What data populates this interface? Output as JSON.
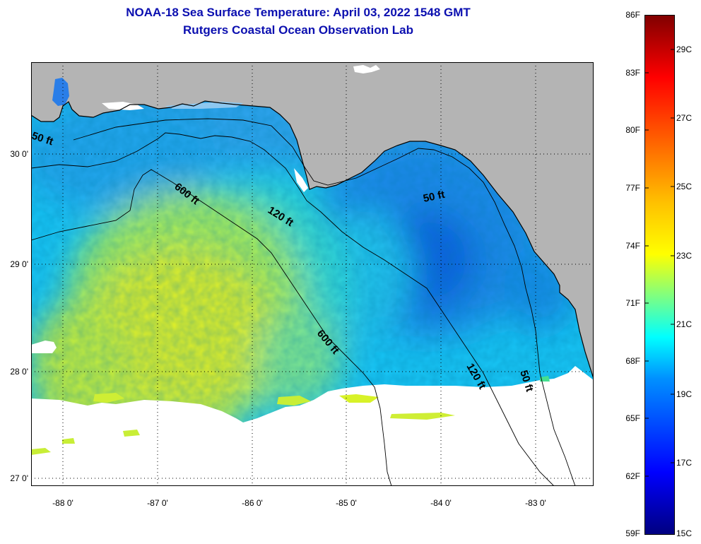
{
  "title": {
    "line1": "NOAA-18 Sea Surface Temperature:  April 03, 2022 1548 GMT",
    "line2": "Rutgers Coastal Ocean Observation Lab"
  },
  "map": {
    "lon_range": [
      -88.35,
      -82.55
    ],
    "lat_range": [
      26.95,
      30.85
    ],
    "lat_ticks": [
      {
        "value": 30,
        "label": "30 0'"
      },
      {
        "value": 29,
        "label": "29 0'"
      },
      {
        "value": 28,
        "label": "28 0'"
      },
      {
        "value": 27,
        "label": "27 0'"
      }
    ],
    "lon_ticks": [
      {
        "value": -88,
        "label": "-88 0'"
      },
      {
        "value": -87,
        "label": "-87 0'"
      },
      {
        "value": -86,
        "label": "-86 0'"
      },
      {
        "value": -85,
        "label": "-85 0'"
      },
      {
        "value": -84,
        "label": "-84 0'"
      },
      {
        "value": -83,
        "label": "-83 0'"
      }
    ],
    "colors": {
      "land": "#b4b4b4",
      "cloud": "#ffffff",
      "warm_core": "#ecf21c",
      "shelf_cool": "#1e8ef0",
      "bay_dark": "#1060e0"
    },
    "contours": [
      {
        "label": "50 ft"
      },
      {
        "label": "50 ft"
      },
      {
        "label": "50 ft"
      },
      {
        "label": "120 ft"
      },
      {
        "label": "120 ft"
      },
      {
        "label": "600 ft"
      },
      {
        "label": "600 ft"
      }
    ]
  },
  "colorbar": {
    "min_f": 59,
    "max_f": 86,
    "f_labels": [
      "86F",
      "83F",
      "80F",
      "77F",
      "74F",
      "71F",
      "68F",
      "65F",
      "62F",
      "59F"
    ],
    "c_labels": [
      "29C",
      "27C",
      "25C",
      "23C",
      "21C",
      "19C",
      "17C",
      "15C"
    ]
  }
}
